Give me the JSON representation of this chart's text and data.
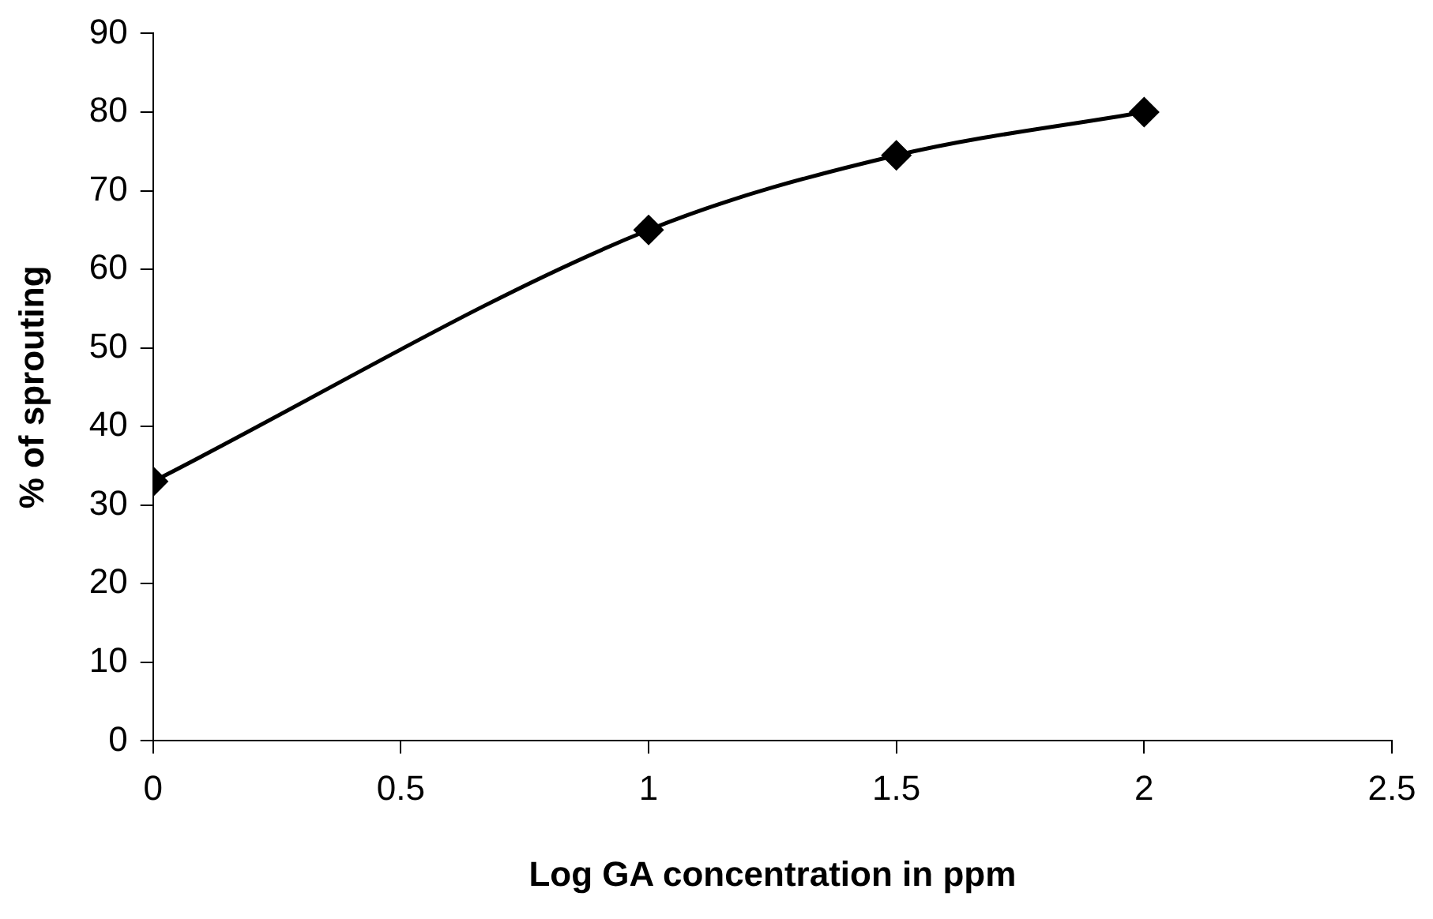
{
  "chart_data": {
    "type": "line",
    "xlabel": "Log GA concentration in ppm",
    "ylabel": "% of sprouting",
    "x": [
      0,
      1,
      1.5,
      2
    ],
    "series": [
      {
        "color": "#000000",
        "values": [
          33,
          65,
          74.5,
          80
        ]
      }
    ],
    "xlim": [
      0,
      2.5
    ],
    "xticks": [
      0,
      0.5,
      1,
      1.5,
      2,
      2.5
    ],
    "ylim": [
      0,
      90
    ],
    "yticks": [
      0,
      10,
      20,
      30,
      40,
      50,
      60,
      70,
      80,
      90
    ],
    "grid": false,
    "legend": false,
    "marker": "diamond",
    "line_style": "solid"
  }
}
